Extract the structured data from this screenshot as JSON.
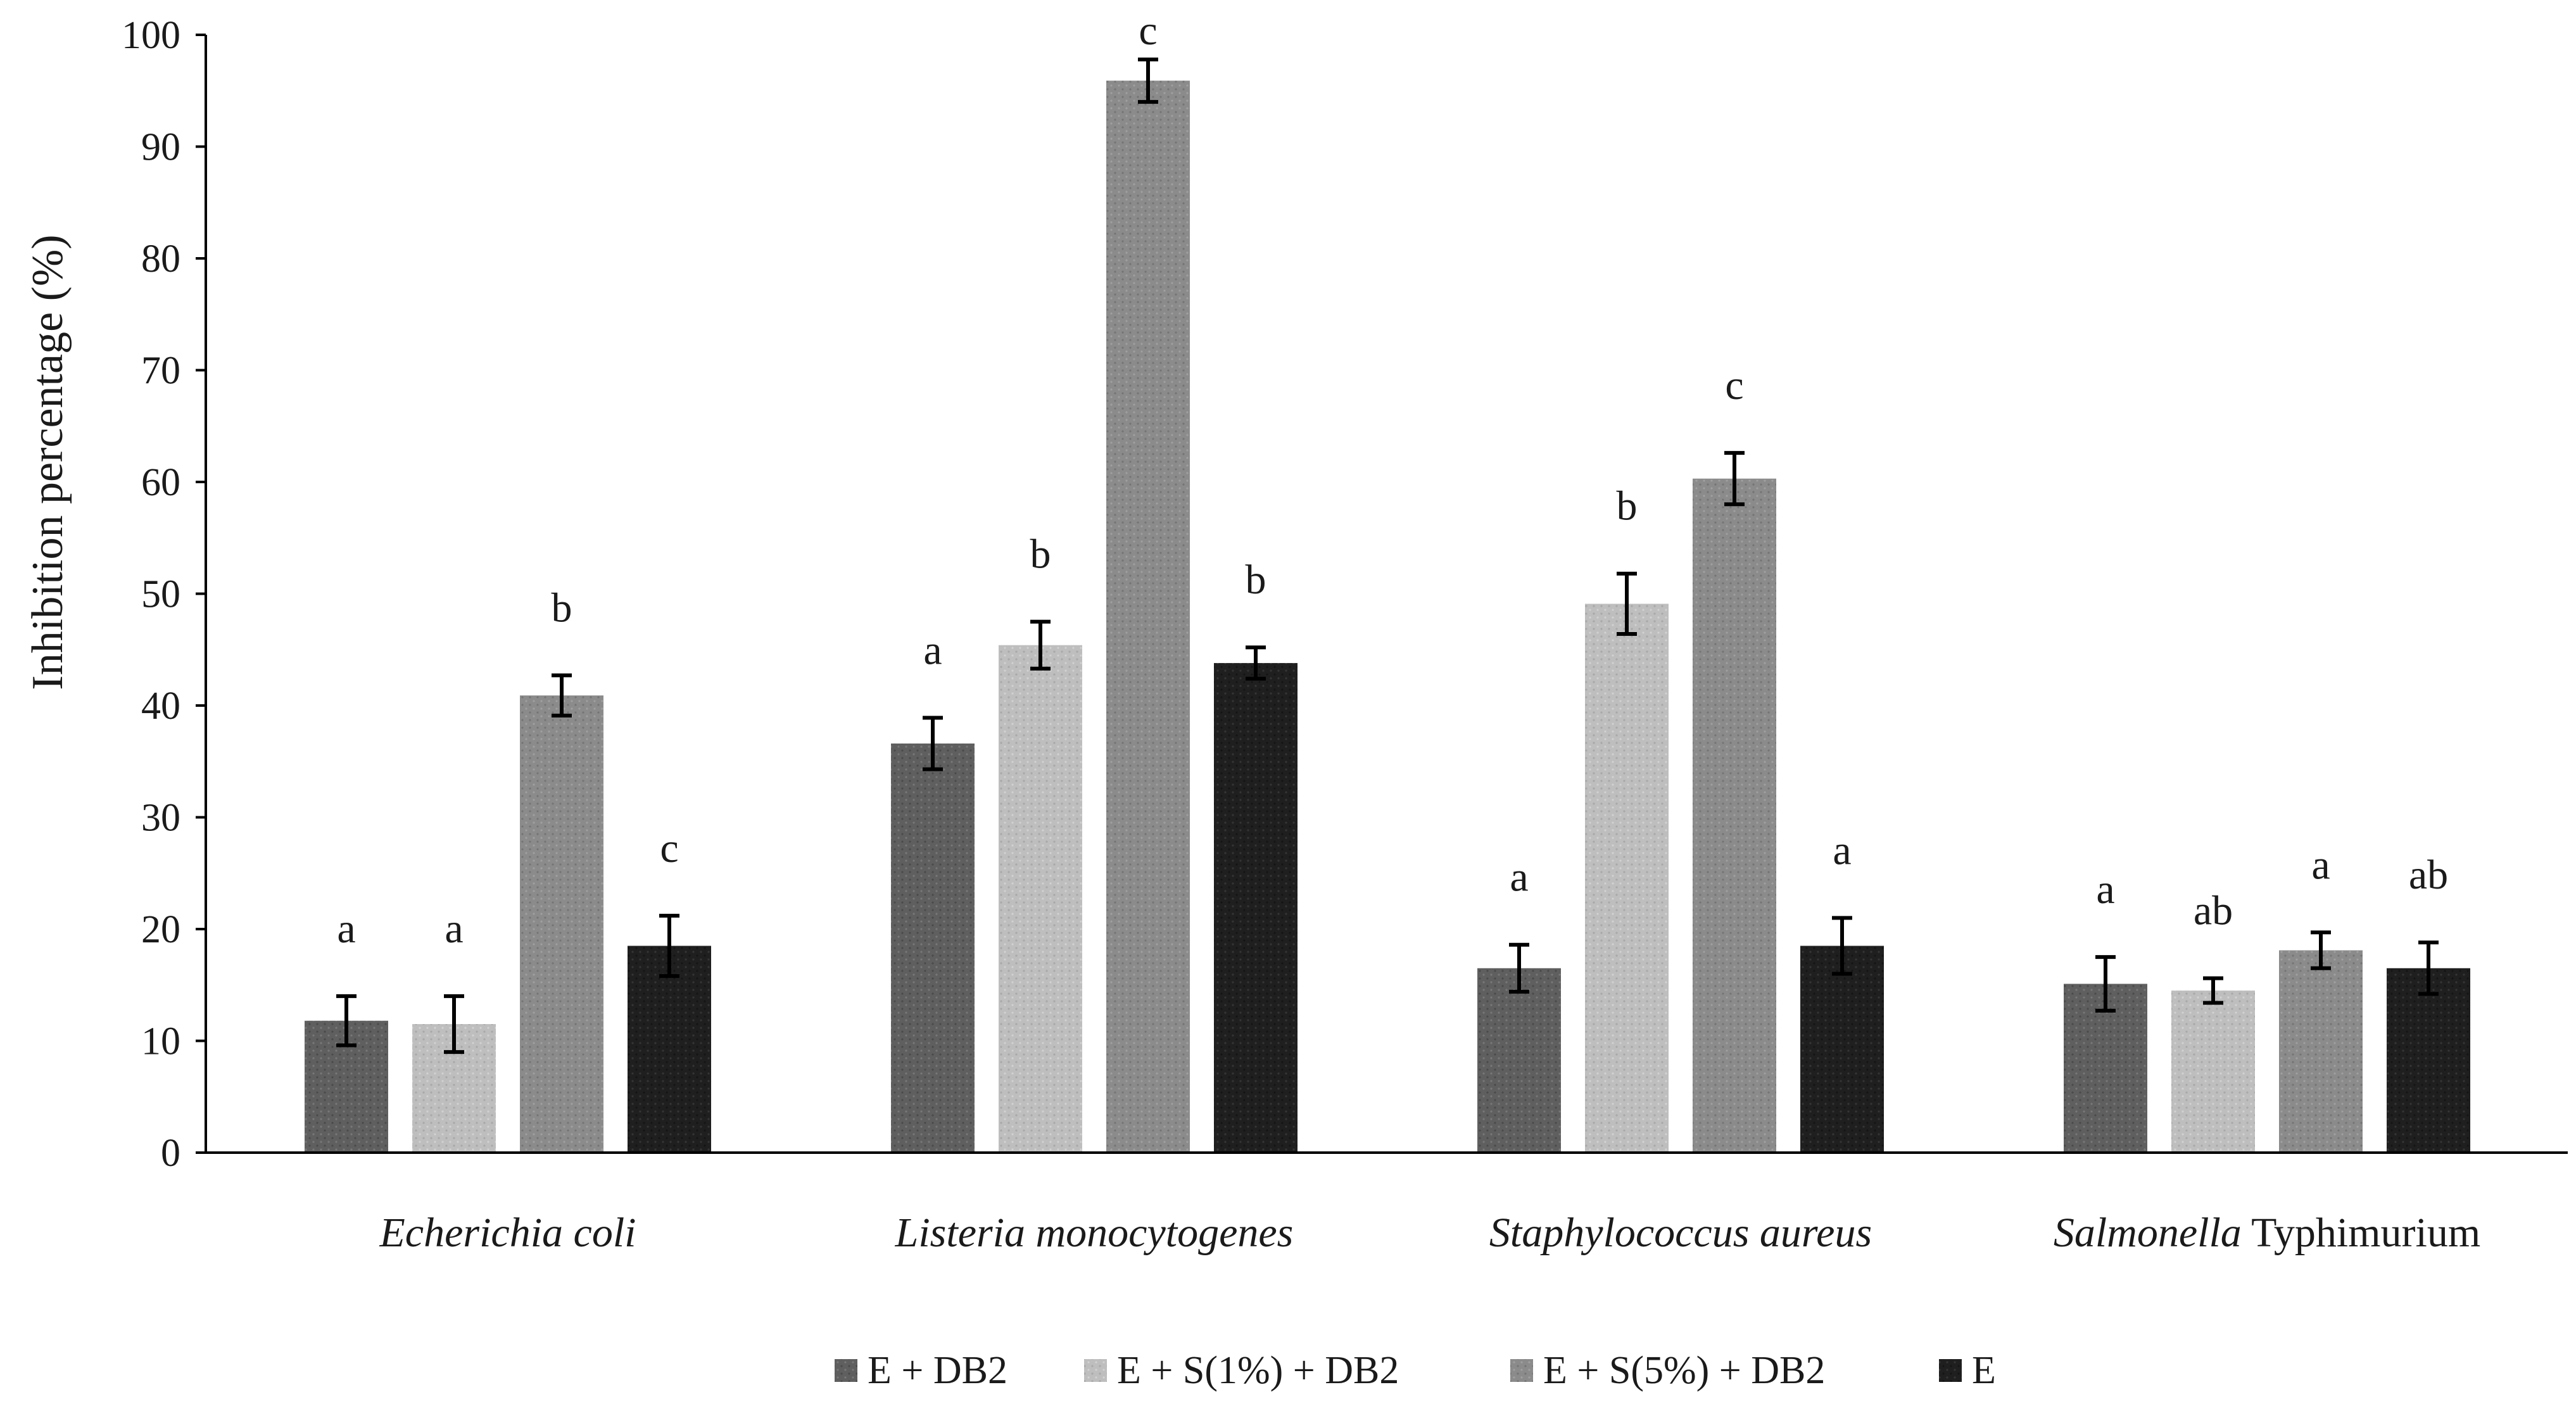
{
  "chart_data": {
    "type": "bar",
    "title": "",
    "xlabel": "",
    "ylabel": "Inhibition percentage (%)",
    "ylim": [
      0,
      100
    ],
    "yticks": [
      "0",
      "10",
      "20",
      "30",
      "40",
      "50",
      "60",
      "70",
      "80",
      "90",
      "100"
    ],
    "grid": false,
    "legend_position": "bottom",
    "categories": [
      {
        "italic": "Echerichia coli",
        "roman": ""
      },
      {
        "italic": "Listeria monocytogenes",
        "roman": ""
      },
      {
        "italic": "Staphylococcus aureus",
        "roman": ""
      },
      {
        "italic": "Salmonella",
        "roman": " Typhimurium"
      }
    ],
    "series": [
      {
        "name": "E + DB2",
        "color": "#606060",
        "pattern": "stipple-dark",
        "values": [
          11.8,
          36.6,
          16.5,
          15.1
        ],
        "errors": [
          2.2,
          2.3,
          2.1,
          2.4
        ],
        "letters": [
          "a",
          "a",
          "a",
          "a"
        ]
      },
      {
        "name": "E + S(1%) + DB2",
        "color": "#bdbdbd",
        "pattern": "stipple-light",
        "values": [
          11.5,
          45.4,
          49.1,
          14.5
        ],
        "errors": [
          2.5,
          2.1,
          2.7,
          1.1
        ],
        "letters": [
          "a",
          "b",
          "b",
          "ab"
        ]
      },
      {
        "name": "E + S(5%) + DB2",
        "color": "#8c8c8c",
        "pattern": "stipple-mid",
        "values": [
          40.9,
          95.9,
          60.3,
          18.1
        ],
        "errors": [
          1.8,
          1.9,
          2.3,
          1.6
        ],
        "letters": [
          "b",
          "c",
          "c",
          "a"
        ]
      },
      {
        "name": "E",
        "color": "#1f1f1f",
        "pattern": "stipple-black",
        "values": [
          18.5,
          43.8,
          18.5,
          16.5
        ],
        "errors": [
          2.7,
          1.4,
          2.5,
          2.3
        ],
        "letters": [
          "c",
          "b",
          "a",
          "ab"
        ]
      }
    ]
  }
}
